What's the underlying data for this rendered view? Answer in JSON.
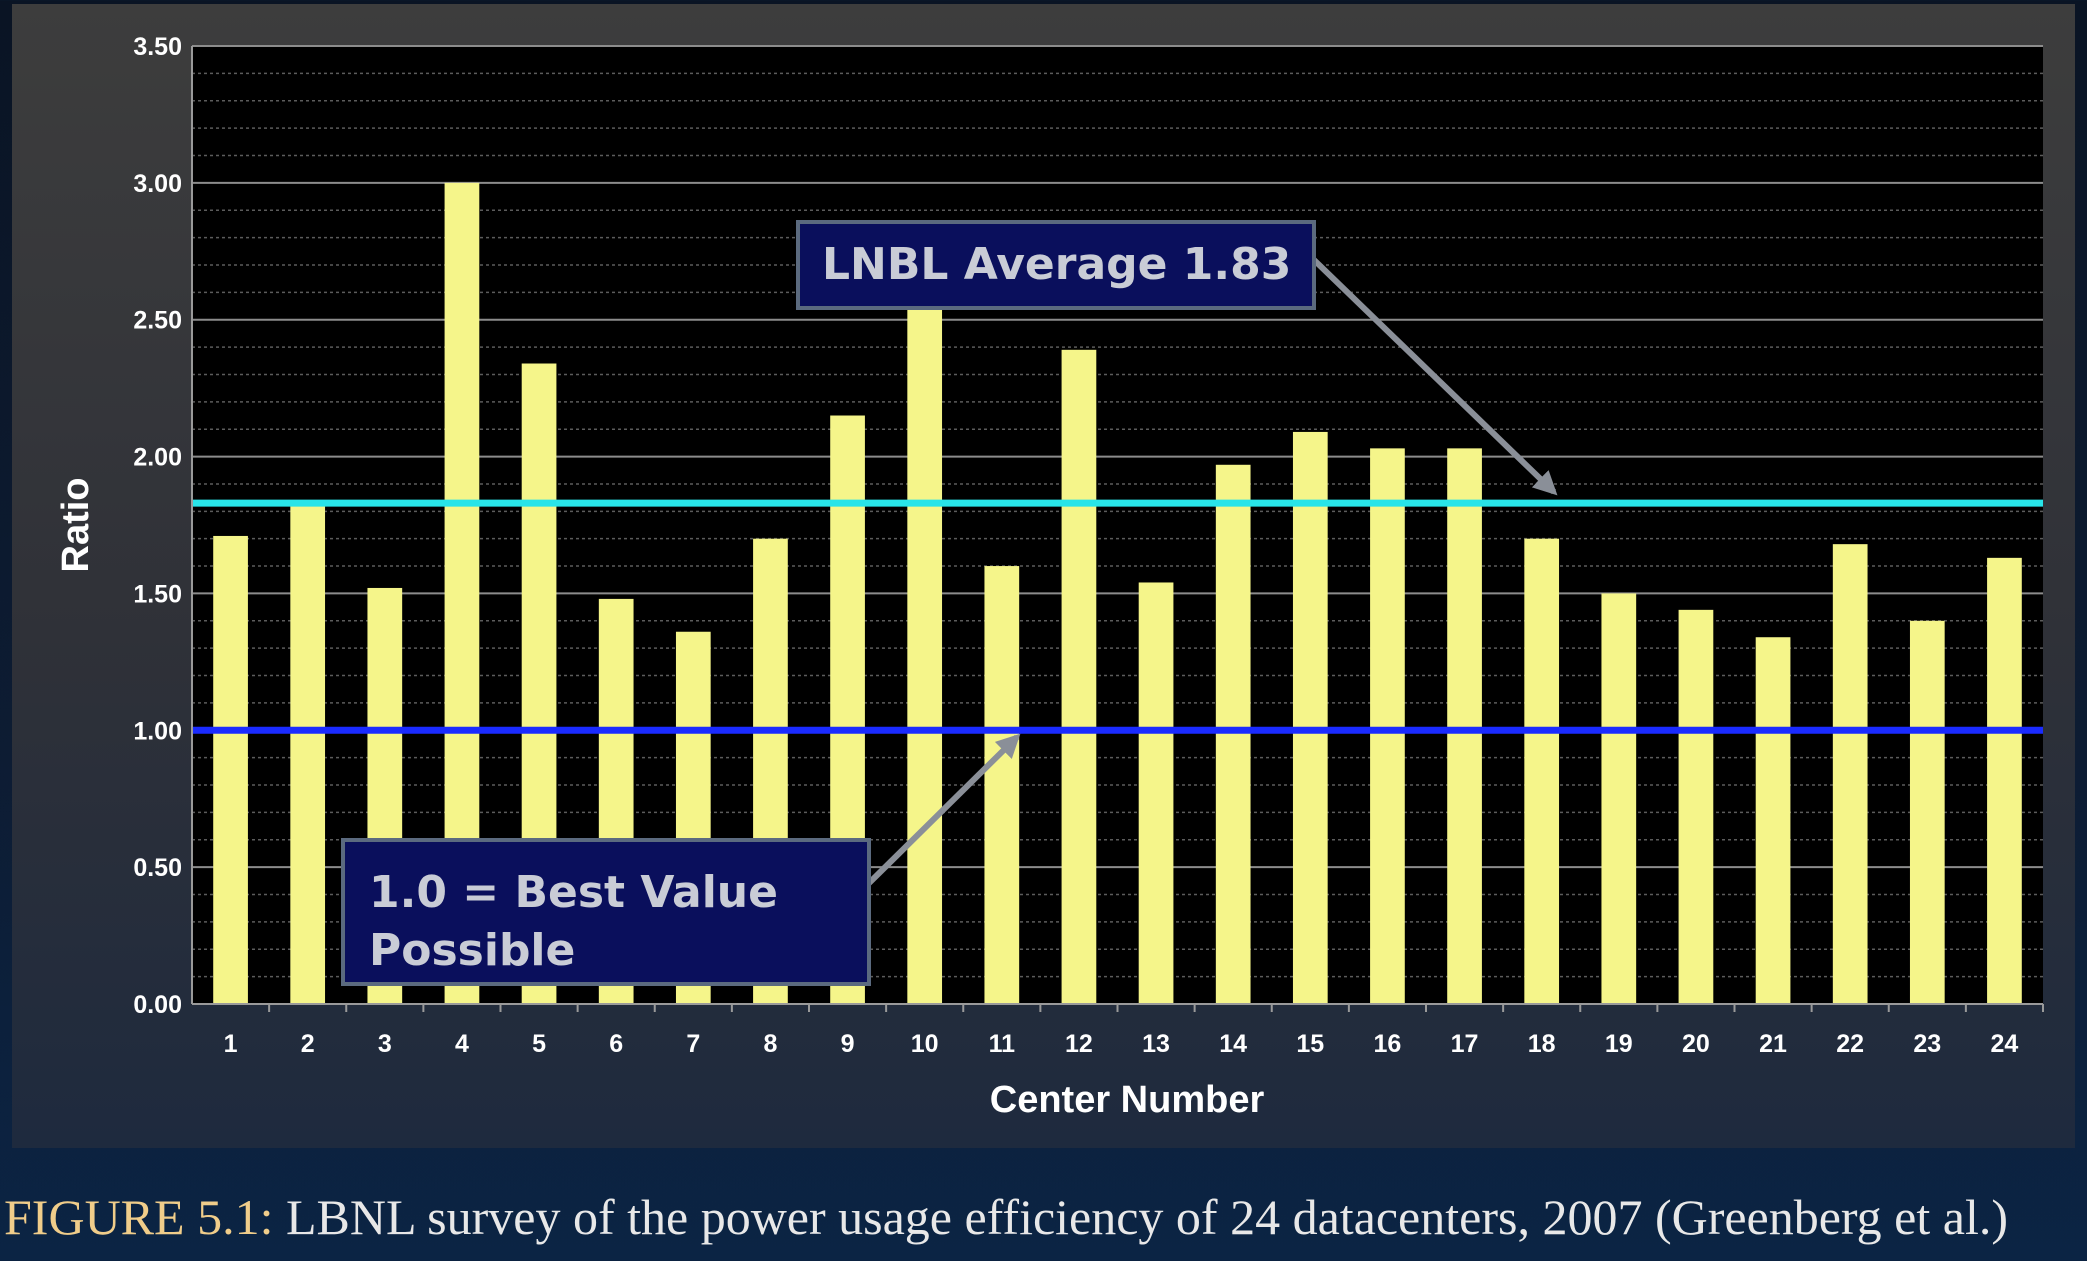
{
  "chart_data": {
    "type": "bar",
    "categories": [
      "1",
      "2",
      "3",
      "4",
      "5",
      "6",
      "7",
      "8",
      "9",
      "10",
      "11",
      "12",
      "13",
      "14",
      "15",
      "16",
      "17",
      "18",
      "19",
      "20",
      "21",
      "22",
      "23",
      "24"
    ],
    "values": [
      1.71,
      1.83,
      1.52,
      3.0,
      2.34,
      1.48,
      1.36,
      1.7,
      2.15,
      2.55,
      1.6,
      2.39,
      1.54,
      1.97,
      2.09,
      2.03,
      2.03,
      1.7,
      1.5,
      1.44,
      1.34,
      1.68,
      1.4,
      1.63
    ],
    "xlabel": "Center Number",
    "ylabel": "Ratio",
    "ylim": [
      0,
      3.5
    ],
    "yticks": [
      "0.00",
      "0.50",
      "1.00",
      "1.50",
      "2.00",
      "2.50",
      "3.00",
      "3.50"
    ],
    "grid": true,
    "reference_lines": [
      {
        "value": 1.83,
        "color": "#28e4e8"
      },
      {
        "value": 1.0,
        "color": "#1a2bff"
      }
    ],
    "annotations": [
      {
        "text": "LNBL Average 1.83",
        "points_to": [
          18,
          1.83
        ]
      },
      {
        "text": "1.0 = Best Value Possible",
        "points_to": [
          11,
          1.0
        ]
      }
    ],
    "colors": {
      "bar": "#f5f58a",
      "plot_background": "#000000",
      "average_line": "#28e4e8",
      "best_line": "#1a2bff",
      "arrow": "#8a8f98"
    }
  },
  "annotations": {
    "average": "LNBL Average 1.83",
    "best_line1": "1.0 = Best Value",
    "best_line2": "Possible"
  },
  "caption": {
    "label": "FIGURE 5.1:",
    "text": " LBNL survey of the power usage efficiency of 24 datacenters, 2007 (Greenberg et al.)"
  }
}
